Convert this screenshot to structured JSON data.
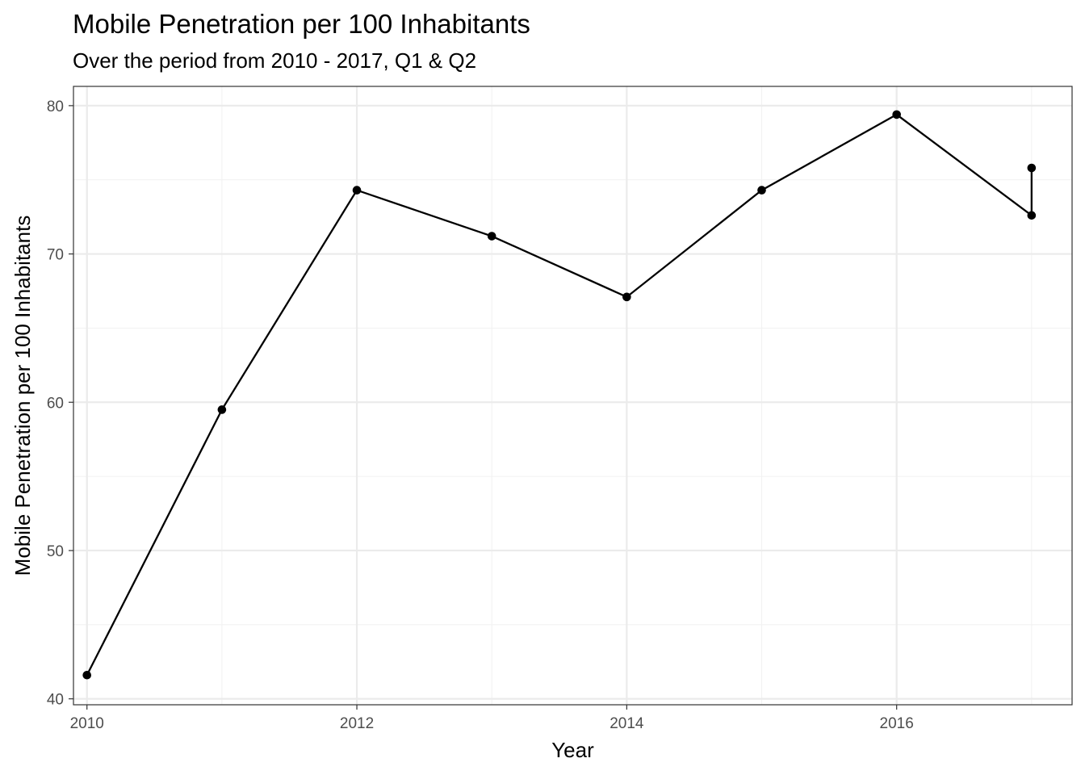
{
  "chart_data": {
    "type": "line",
    "title": "Mobile Penetration per 100 Inhabitants",
    "subtitle": "Over the period from 2010 - 2017, Q1 & Q2",
    "xlabel": "Year",
    "ylabel": "Mobile Penetration per 100 Inhabitants",
    "xlim": [
      2009.9,
      2017.3
    ],
    "ylim": [
      39.6,
      81.3
    ],
    "x_ticks": [
      2010,
      2012,
      2014,
      2016
    ],
    "x_minor_ticks": [
      2011,
      2013,
      2015,
      2017
    ],
    "y_ticks": [
      40,
      50,
      60,
      70,
      80
    ],
    "y_minor_ticks": [
      45,
      55,
      65,
      75
    ],
    "grid": true,
    "legend": "none",
    "line_color": "#000000",
    "series": [
      {
        "x": [
          2010,
          2011,
          2012,
          2013,
          2014,
          2015,
          2016,
          2017,
          2017
        ],
        "y": [
          41.6,
          59.5,
          74.3,
          71.2,
          67.1,
          74.3,
          79.4,
          72.6,
          75.8
        ]
      }
    ]
  }
}
